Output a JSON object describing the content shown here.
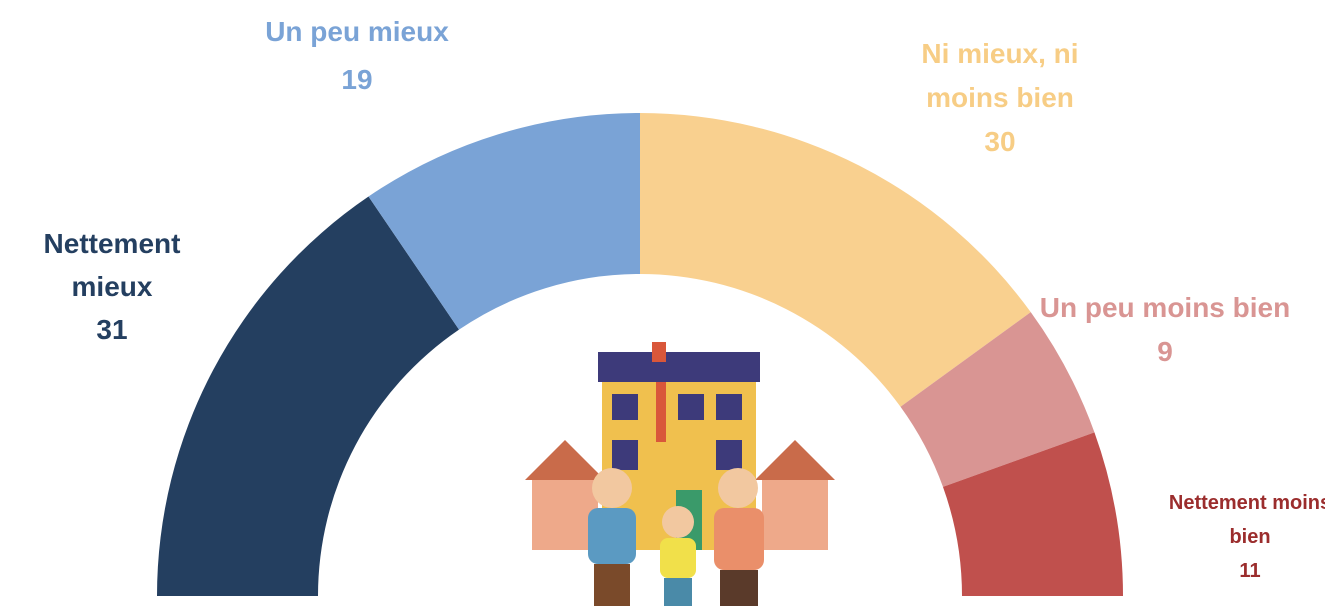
{
  "chart_data": {
    "type": "half-donut",
    "categories": [
      "Nettement mieux",
      "Un peu mieux",
      "Ni mieux, ni moins bien",
      "Un peu moins bien",
      "Nettement moins bien"
    ],
    "values": [
      31,
      19,
      30,
      9,
      11
    ],
    "colors": [
      "#243f60",
      "#7aa3d6",
      "#f9d08f",
      "#d99593",
      "#c0504d"
    ],
    "label_colors": [
      "#243f60",
      "#7aa3d6",
      "#f7cd85",
      "#d99593",
      "#9b2d2d"
    ]
  }
}
